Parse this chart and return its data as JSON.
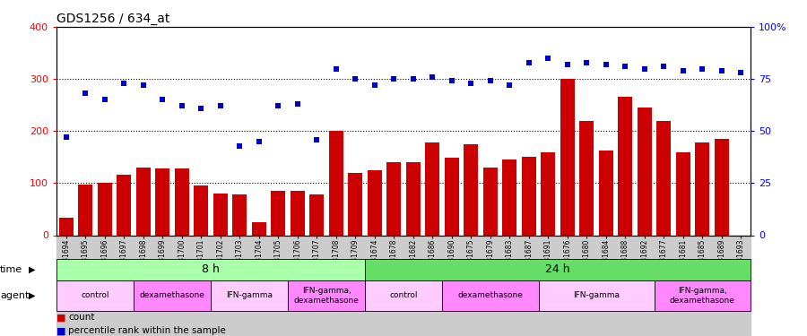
{
  "title": "GDS1256 / 634_at",
  "samples": [
    "GSM31694",
    "GSM31695",
    "GSM31696",
    "GSM31697",
    "GSM31698",
    "GSM31699",
    "GSM31700",
    "GSM31701",
    "GSM31702",
    "GSM31703",
    "GSM31704",
    "GSM31705",
    "GSM31706",
    "GSM31707",
    "GSM31708",
    "GSM31709",
    "GSM31674",
    "GSM31678",
    "GSM31682",
    "GSM31686",
    "GSM31690",
    "GSM31675",
    "GSM31679",
    "GSM31683",
    "GSM31687",
    "GSM31691",
    "GSM31676",
    "GSM31680",
    "GSM31684",
    "GSM31688",
    "GSM31692",
    "GSM31677",
    "GSM31681",
    "GSM31685",
    "GSM31689",
    "GSM31693"
  ],
  "counts": [
    33,
    97,
    100,
    116,
    130,
    128,
    128,
    96,
    80,
    78,
    25,
    86,
    86,
    79,
    200,
    120,
    125,
    140,
    140,
    178,
    148,
    175,
    130,
    145,
    150,
    160,
    300,
    220,
    162,
    265,
    245,
    220,
    160,
    178,
    185,
    0
  ],
  "percentiles": [
    47,
    68,
    65,
    73,
    72,
    65,
    62,
    61,
    62,
    43,
    45,
    62,
    63,
    46,
    80,
    75,
    72,
    75,
    75,
    76,
    74,
    73,
    74,
    72,
    83,
    85,
    82,
    83,
    82,
    81,
    80,
    81,
    79,
    80,
    79,
    78
  ],
  "bar_color": "#cc0000",
  "dot_color": "#0000cc",
  "time_groups": [
    {
      "label": "8 h",
      "start": 0,
      "end": 16,
      "color": "#aaffaa"
    },
    {
      "label": "24 h",
      "start": 16,
      "end": 36,
      "color": "#66dd66"
    }
  ],
  "agent_groups": [
    {
      "label": "control",
      "start": 0,
      "end": 4,
      "color": "#ffccff"
    },
    {
      "label": "dexamethasone",
      "start": 4,
      "end": 8,
      "color": "#ff88ff"
    },
    {
      "label": "IFN-gamma",
      "start": 8,
      "end": 12,
      "color": "#ffccff"
    },
    {
      "label": "IFN-gamma,\ndexamethasone",
      "start": 12,
      "end": 16,
      "color": "#ff88ff"
    },
    {
      "label": "control",
      "start": 16,
      "end": 20,
      "color": "#ffccff"
    },
    {
      "label": "dexamethasone",
      "start": 20,
      "end": 25,
      "color": "#ff88ff"
    },
    {
      "label": "IFN-gamma",
      "start": 25,
      "end": 31,
      "color": "#ffccff"
    },
    {
      "label": "IFN-gamma,\ndexamethasone",
      "start": 31,
      "end": 36,
      "color": "#ff88ff"
    }
  ]
}
